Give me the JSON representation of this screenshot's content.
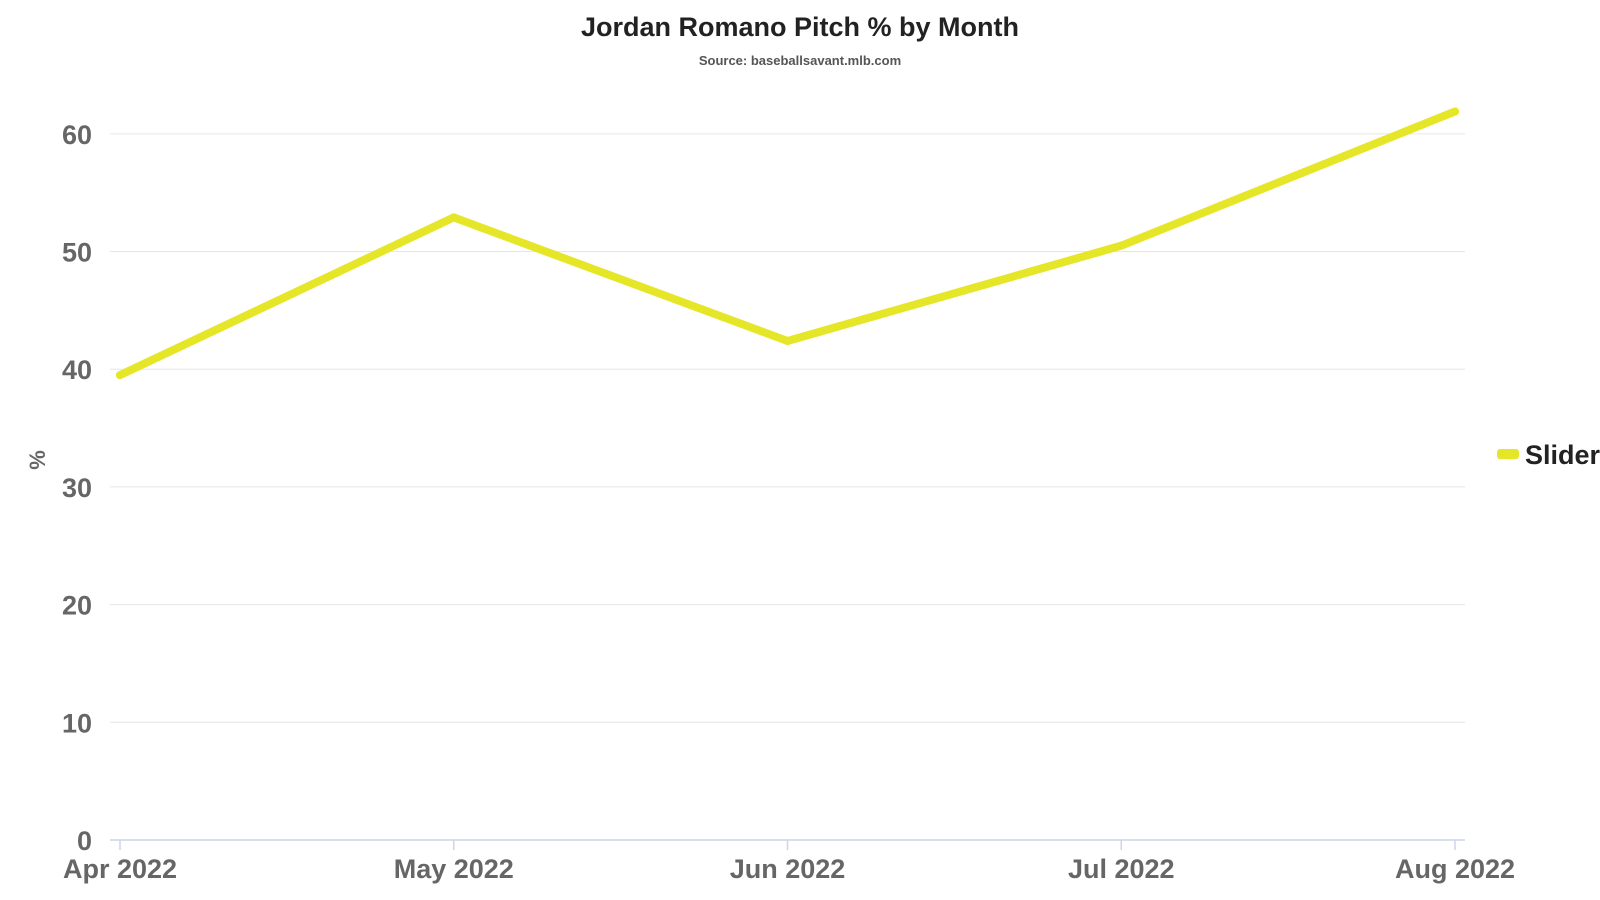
{
  "chart_data": {
    "type": "line",
    "title": "Jordan Romano Pitch % by Month",
    "subtitle": "Source: baseballsavant.mlb.com",
    "ylabel": "%",
    "xlabel": "",
    "categories": [
      "Apr 2022",
      "May 2022",
      "Jun 2022",
      "Jul 2022",
      "Aug 2022"
    ],
    "y_ticks": [
      0,
      10,
      20,
      30,
      40,
      50,
      60
    ],
    "ylim": [
      0,
      65
    ],
    "grid": true,
    "legend_position": "right",
    "series": [
      {
        "name": "Slider",
        "color": "#e6e629",
        "values": [
          39.5,
          52.9,
          42.4,
          50.5,
          61.9
        ]
      }
    ]
  }
}
